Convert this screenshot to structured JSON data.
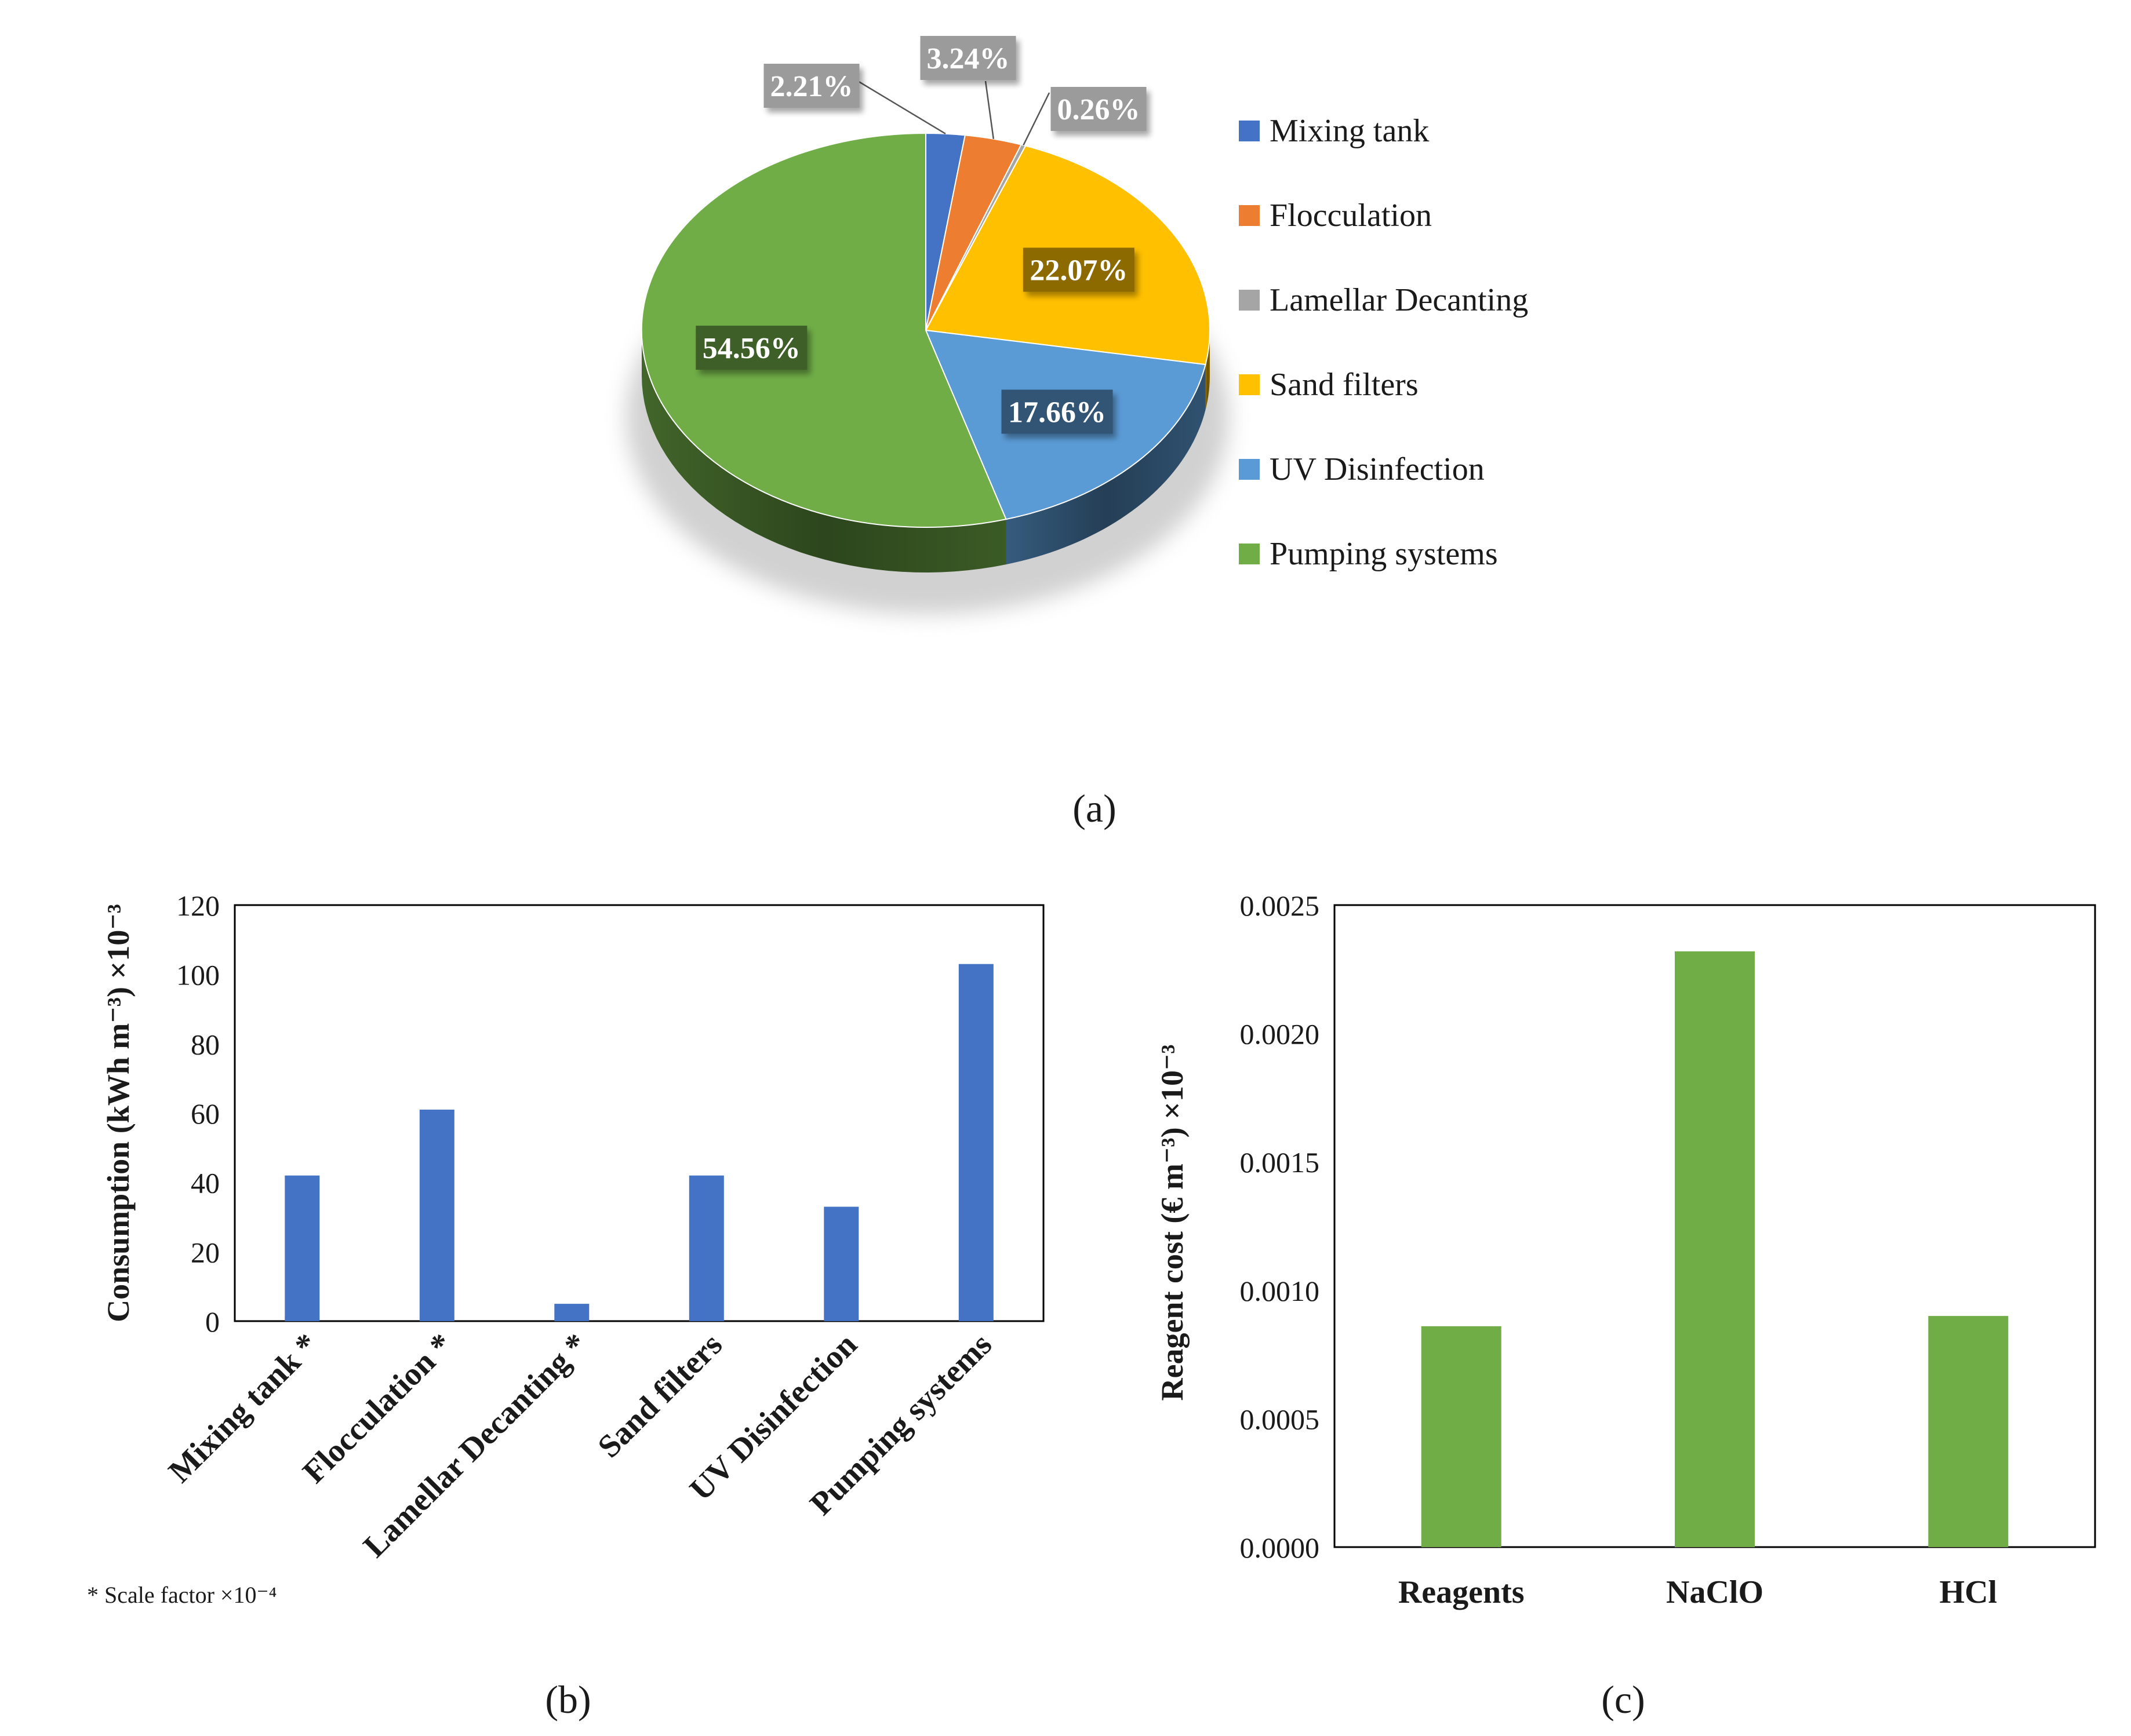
{
  "chart_data": [
    {
      "type": "pie",
      "panel_label": "a",
      "categories": [
        "Mixing tank",
        "Flocculation",
        "Lamellar Decanting",
        "Sand filters",
        "UV Disinfection",
        "Pumping systems"
      ],
      "values": [
        2.21,
        3.24,
        0.26,
        22.07,
        17.66,
        54.56
      ],
      "data_labels": [
        "2.21%",
        "3.24%",
        "0.26%",
        "22.07%",
        "17.66%",
        "54.56%"
      ],
      "colors": [
        "#4472C4",
        "#ED7D31",
        "#A5A5A5",
        "#FFC000",
        "#5B9BD5",
        "#70AD47"
      ],
      "legend_position": "right"
    },
    {
      "type": "bar",
      "panel_label": "b",
      "categories": [
        "Mixing tank *",
        "Flocculation *",
        "Lamellar Decanting *",
        "Sand filters",
        "UV Disinfection",
        "Pumping systems"
      ],
      "values": [
        42,
        61,
        5,
        42,
        33,
        103
      ],
      "ylabel": "Consumption (kWh m⁻³) ×10⁻³",
      "ylim": [
        0,
        120
      ],
      "yticks": [
        "0",
        "20",
        "40",
        "60",
        "80",
        "100",
        "120"
      ],
      "color": "#4472C4",
      "footnote": "* Scale factor ×10⁻⁴"
    },
    {
      "type": "bar",
      "panel_label": "c",
      "categories": [
        "Reagents",
        "NaClO",
        "HCl"
      ],
      "values": [
        0.00086,
        0.00232,
        0.0009
      ],
      "ylabel": "Reagent cost (€ m⁻³) ×10⁻³",
      "ylim": [
        0,
        0.0025
      ],
      "yticks": [
        "0.0000",
        "0.0005",
        "0.0010",
        "0.0015",
        "0.0020",
        "0.0025"
      ],
      "color": "#70AD47"
    }
  ]
}
